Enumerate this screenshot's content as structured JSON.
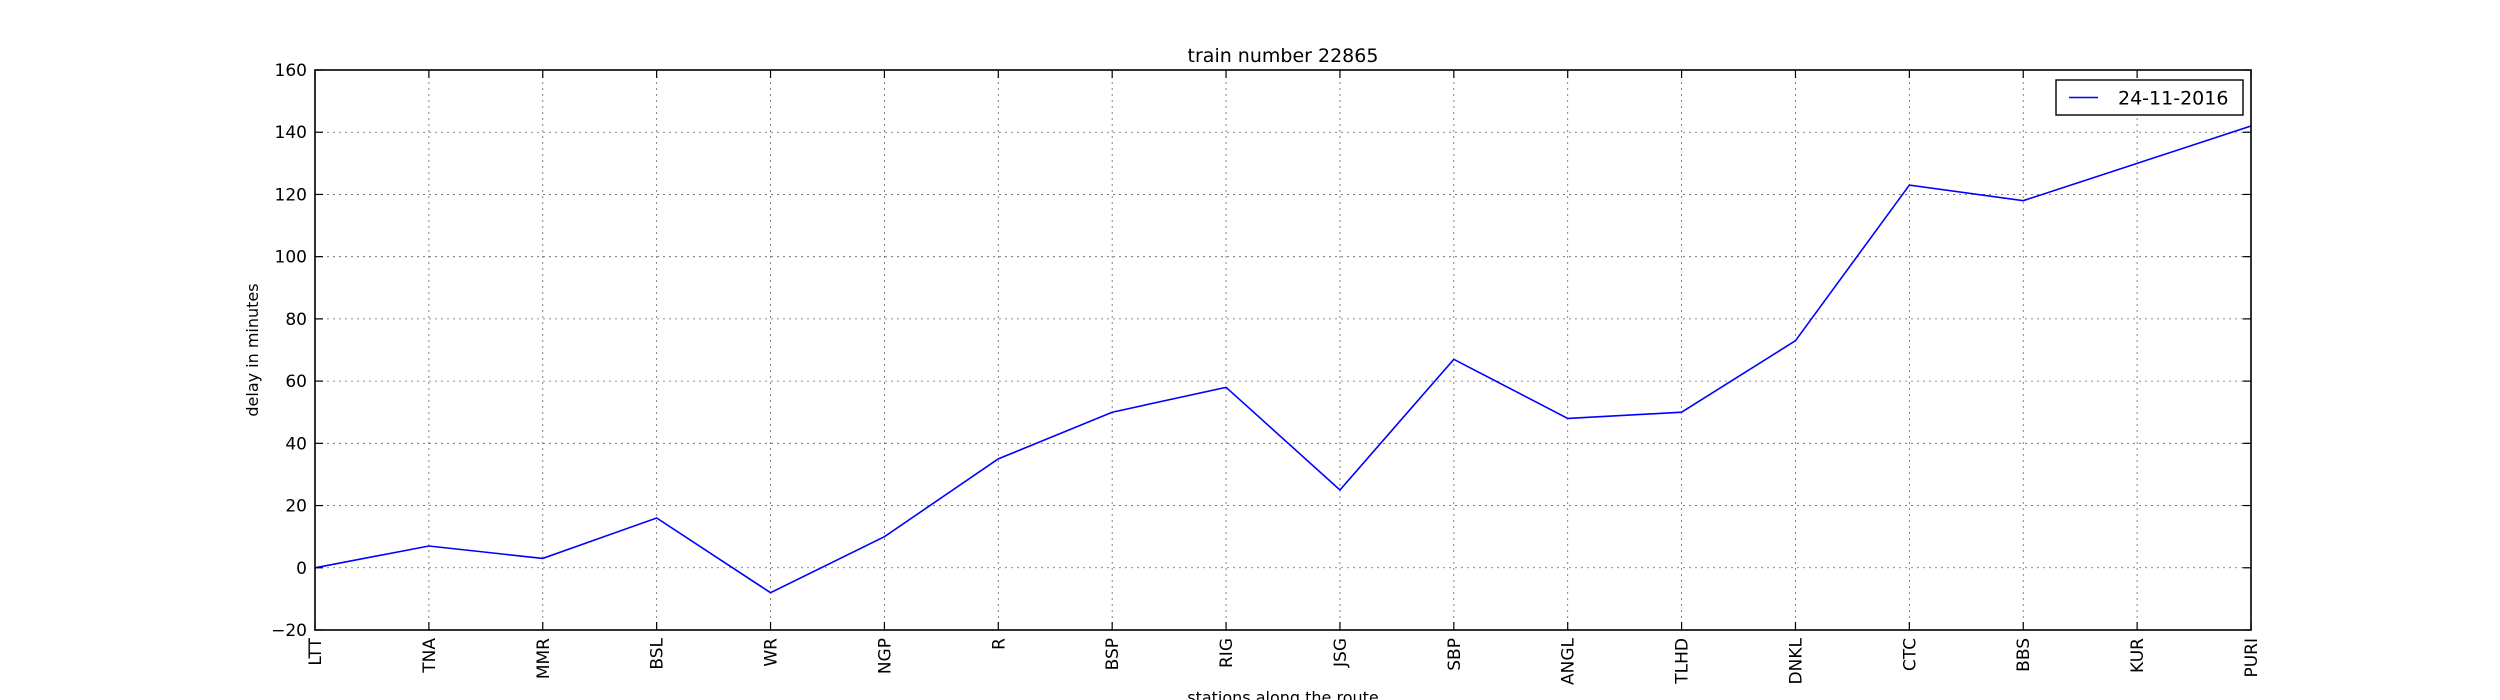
{
  "chart_data": {
    "type": "line",
    "title": "train number 22865",
    "xlabel": "stations along the route",
    "ylabel": "delay in minutes",
    "categories": [
      "LTT",
      "TNA",
      "MMR",
      "BSL",
      "WR",
      "NGP",
      "R",
      "BSP",
      "RIG",
      "JSG",
      "SBP",
      "ANGL",
      "TLHD",
      "DNKL",
      "CTC",
      "BBS",
      "KUR",
      "PURI"
    ],
    "series": [
      {
        "name": "24-11-2016",
        "values": [
          0,
          7,
          3,
          16,
          -8,
          10,
          35,
          50,
          58,
          25,
          67,
          48,
          50,
          73,
          123,
          118,
          130,
          142
        ],
        "color": "#0000ff"
      }
    ],
    "ylim": [
      -20,
      160
    ],
    "yticks": [
      -20,
      0,
      20,
      40,
      60,
      80,
      100,
      120,
      140,
      160
    ],
    "grid": true,
    "legend_position": "top-right"
  }
}
